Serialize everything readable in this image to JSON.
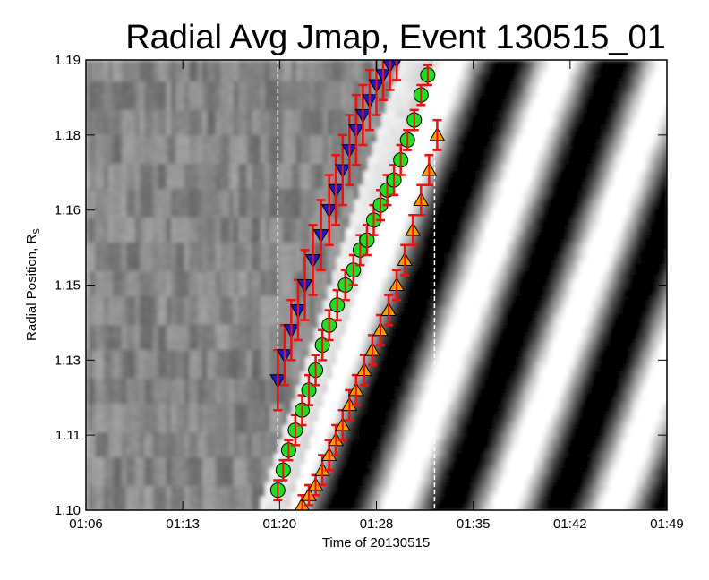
{
  "chart_data": {
    "type": "scatter",
    "title": "Radial Avg Jmap, Event 130515_01",
    "xlabel": "Time of 20130515",
    "ylabel_main": "Radial Position, R",
    "ylabel_sub": "S",
    "x_ticks": [
      "01:06",
      "01:13",
      "01:20",
      "01:28",
      "01:35",
      "01:42",
      "01:49"
    ],
    "y_ticks": [
      "1.10",
      "1.11",
      "1.13",
      "1.15",
      "1.16",
      "1.18",
      "1.19"
    ],
    "x_range_minutes": [
      66,
      109
    ],
    "y_range": [
      1.1,
      1.19
    ],
    "vertical_dashed_lines": [
      80.2,
      91.8
    ],
    "colors": {
      "green_fill": "#22dd22",
      "blue_fill": "#1a1acc",
      "orange_fill": "#ff9900",
      "error_bar": "#ee1111",
      "dashed_line": "#ffffff"
    },
    "series": [
      {
        "marker": "circle",
        "x": [
          80.2,
          80.6,
          81.0,
          81.5,
          82.0,
          82.5,
          83.0,
          83.5,
          84.0,
          84.6,
          85.2,
          85.8,
          86.3,
          86.8,
          87.3,
          87.8,
          88.3,
          88.8,
          89.3,
          89.8,
          90.3,
          90.8,
          91.3
        ],
        "y": [
          1.104,
          1.108,
          1.112,
          1.116,
          1.12,
          1.124,
          1.128,
          1.133,
          1.137,
          1.141,
          1.145,
          1.148,
          1.152,
          1.154,
          1.158,
          1.161,
          1.164,
          1.166,
          1.17,
          1.174,
          1.178,
          1.183,
          1.187
        ],
        "err": [
          0.002,
          0.002,
          0.002,
          0.003,
          0.003,
          0.003,
          0.003,
          0.003,
          0.003,
          0.003,
          0.003,
          0.003,
          0.003,
          0.003,
          0.003,
          0.003,
          0.003,
          0.003,
          0.003,
          0.002,
          0.002,
          0.002,
          0.002
        ]
      },
      {
        "marker": "triangle-down",
        "x": [
          80.2,
          80.7,
          81.2,
          81.7,
          82.2,
          82.8,
          83.4,
          84.0,
          84.5,
          85.0,
          85.5,
          86.0,
          86.5,
          87.0,
          87.5,
          88.0,
          88.5,
          89.0
        ],
        "y": [
          1.126,
          1.131,
          1.136,
          1.14,
          1.145,
          1.15,
          1.155,
          1.16,
          1.164,
          1.168,
          1.172,
          1.176,
          1.179,
          1.182,
          1.185,
          1.187,
          1.189,
          1.19
        ],
        "err": [
          0.006,
          0.006,
          0.006,
          0.006,
          0.007,
          0.007,
          0.007,
          0.007,
          0.007,
          0.007,
          0.007,
          0.007,
          0.006,
          0.006,
          0.006,
          0.005,
          0.005,
          0.004
        ]
      },
      {
        "marker": "triangle-up",
        "x": [
          82.0,
          82.5,
          83.0,
          83.5,
          84.0,
          84.5,
          85.0,
          85.5,
          86.0,
          86.6,
          87.2,
          87.8,
          88.4,
          89.0,
          89.6,
          90.2,
          90.8,
          91.4,
          92.0
        ],
        "y": [
          1.101,
          1.103,
          1.105,
          1.108,
          1.111,
          1.114,
          1.117,
          1.121,
          1.124,
          1.128,
          1.132,
          1.136,
          1.14,
          1.145,
          1.15,
          1.156,
          1.162,
          1.168,
          1.175
        ],
        "err": [
          0.002,
          0.002,
          0.002,
          0.003,
          0.003,
          0.003,
          0.003,
          0.003,
          0.003,
          0.003,
          0.003,
          0.003,
          0.003,
          0.003,
          0.003,
          0.003,
          0.003,
          0.003,
          0.003
        ]
      }
    ]
  }
}
